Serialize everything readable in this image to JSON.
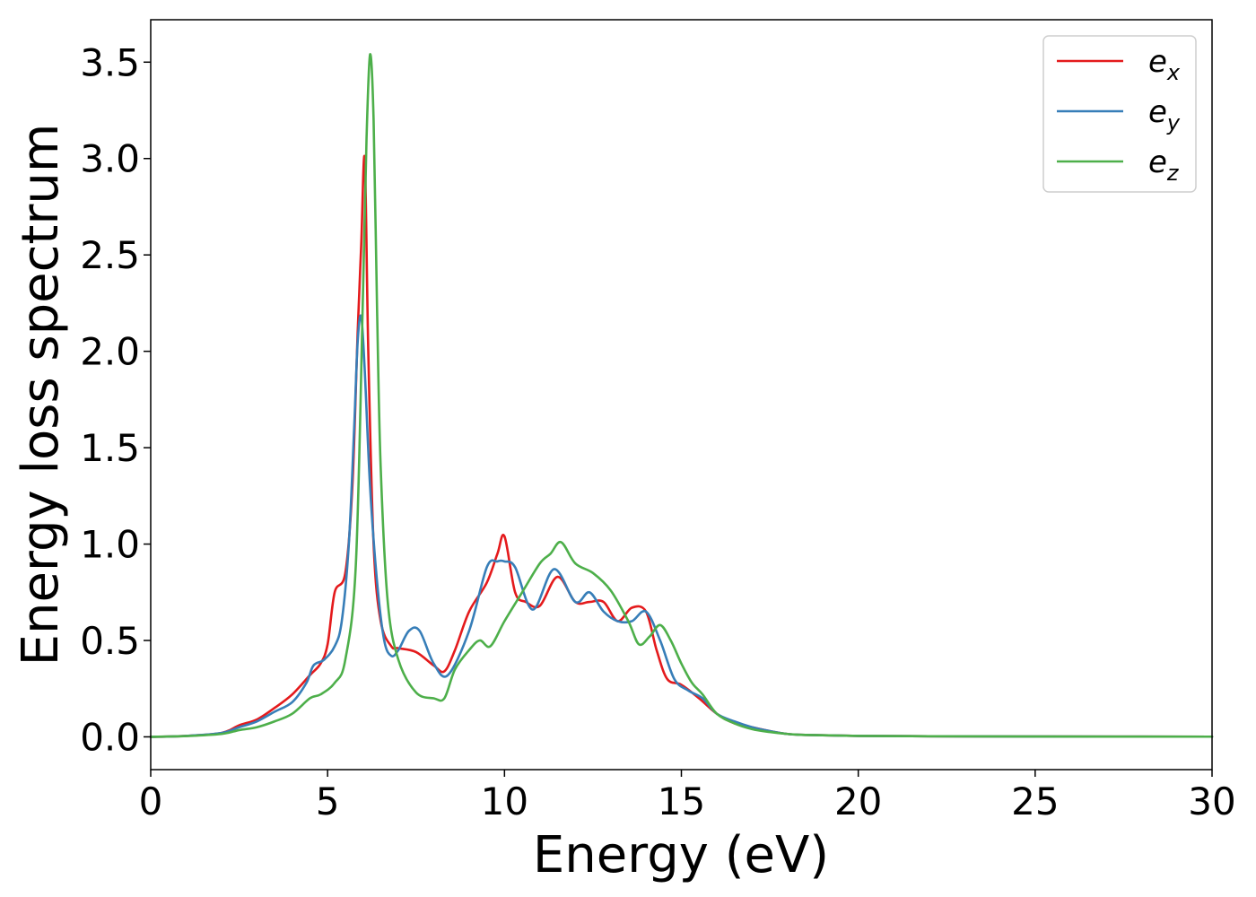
{
  "chart_data": {
    "type": "line",
    "xlabel": "Energy (eV)",
    "ylabel": "Energy loss spectrum",
    "xlim": [
      0,
      30
    ],
    "ylim": [
      -0.17,
      3.72
    ],
    "xticks": [
      0,
      5,
      10,
      15,
      20,
      25,
      30
    ],
    "xtick_labels": [
      "0",
      "5",
      "10",
      "15",
      "20",
      "25",
      "30"
    ],
    "yticks": [
      0.0,
      0.5,
      1.0,
      1.5,
      2.0,
      2.5,
      3.0,
      3.5
    ],
    "ytick_labels": [
      "0.0",
      "0.5",
      "1.0",
      "1.5",
      "2.0",
      "2.5",
      "3.0",
      "3.5"
    ],
    "grid": false,
    "legend_position": "top-right",
    "series": [
      {
        "name": "e",
        "sub": "x",
        "color": "#e41a1c",
        "x": [
          0,
          1,
          2,
          2.5,
          3,
          3.5,
          4,
          4.5,
          4.8,
          5,
          5.2,
          5.5,
          5.7,
          5.85,
          5.95,
          6.05,
          6.15,
          6.3,
          6.5,
          6.8,
          7.0,
          7.5,
          8.0,
          8.3,
          8.6,
          9.0,
          9.5,
          9.8,
          10.0,
          10.3,
          10.6,
          11.0,
          11.5,
          12.0,
          12.4,
          12.8,
          13.2,
          13.6,
          14.0,
          14.3,
          14.6,
          15.0,
          15.5,
          16.0,
          16.5,
          17.0,
          17.5,
          18.0,
          18.5,
          20,
          22,
          25,
          30
        ],
        "y": [
          0.0,
          0.005,
          0.02,
          0.06,
          0.09,
          0.15,
          0.22,
          0.32,
          0.38,
          0.48,
          0.75,
          0.85,
          1.3,
          2.1,
          2.55,
          3.0,
          2.0,
          1.0,
          0.6,
          0.47,
          0.46,
          0.44,
          0.37,
          0.34,
          0.45,
          0.65,
          0.8,
          0.95,
          1.04,
          0.75,
          0.7,
          0.68,
          0.83,
          0.7,
          0.7,
          0.7,
          0.6,
          0.67,
          0.65,
          0.45,
          0.3,
          0.27,
          0.2,
          0.12,
          0.07,
          0.05,
          0.03,
          0.015,
          0.01,
          0.005,
          0.003,
          0.002,
          0.001
        ]
      },
      {
        "name": "e",
        "sub": "y",
        "color": "#377eb8",
        "x": [
          0,
          1,
          2,
          2.5,
          3,
          3.5,
          4,
          4.4,
          4.6,
          4.9,
          5.2,
          5.4,
          5.6,
          5.75,
          5.85,
          5.95,
          6.05,
          6.2,
          6.4,
          6.6,
          6.8,
          7.0,
          7.3,
          7.6,
          8.0,
          8.4,
          9.0,
          9.5,
          9.8,
          10.0,
          10.3,
          10.8,
          11.4,
          12.0,
          12.4,
          12.8,
          13.2,
          13.6,
          14.0,
          14.4,
          14.8,
          15.2,
          15.6,
          16.0,
          16.5,
          17.0,
          17.5,
          18.0,
          18.5,
          20,
          22,
          25,
          30
        ],
        "y": [
          0.0,
          0.005,
          0.02,
          0.05,
          0.08,
          0.13,
          0.18,
          0.28,
          0.37,
          0.4,
          0.47,
          0.6,
          1.0,
          1.6,
          2.05,
          2.18,
          1.9,
          1.3,
          0.8,
          0.5,
          0.42,
          0.45,
          0.55,
          0.55,
          0.38,
          0.32,
          0.55,
          0.88,
          0.91,
          0.91,
          0.88,
          0.66,
          0.87,
          0.7,
          0.75,
          0.65,
          0.6,
          0.6,
          0.65,
          0.5,
          0.3,
          0.24,
          0.2,
          0.12,
          0.08,
          0.05,
          0.03,
          0.015,
          0.01,
          0.005,
          0.003,
          0.002,
          0.001
        ]
      },
      {
        "name": "e",
        "sub": "z",
        "color": "#4daf4a",
        "x": [
          0,
          1,
          2,
          2.5,
          3,
          3.5,
          4,
          4.5,
          4.8,
          5.2,
          5.5,
          5.8,
          6.0,
          6.1,
          6.2,
          6.3,
          6.4,
          6.5,
          6.7,
          7.0,
          7.5,
          8.0,
          8.3,
          8.6,
          9.0,
          9.3,
          9.6,
          10.0,
          10.5,
          11.0,
          11.3,
          11.6,
          12.0,
          12.5,
          13.0,
          13.5,
          13.8,
          14.1,
          14.4,
          14.7,
          15.0,
          15.3,
          15.6,
          16.0,
          16.5,
          17.0,
          17.5,
          18.0,
          18.5,
          20,
          22,
          25,
          30
        ],
        "y": [
          0.0,
          0.004,
          0.015,
          0.035,
          0.05,
          0.08,
          0.12,
          0.2,
          0.22,
          0.28,
          0.4,
          0.9,
          2.3,
          3.1,
          3.54,
          3.2,
          2.2,
          1.4,
          0.7,
          0.4,
          0.23,
          0.2,
          0.2,
          0.35,
          0.45,
          0.5,
          0.47,
          0.6,
          0.75,
          0.9,
          0.95,
          1.01,
          0.9,
          0.85,
          0.76,
          0.6,
          0.48,
          0.52,
          0.58,
          0.5,
          0.38,
          0.28,
          0.22,
          0.12,
          0.07,
          0.04,
          0.025,
          0.015,
          0.01,
          0.005,
          0.003,
          0.002,
          0.001
        ]
      }
    ]
  }
}
